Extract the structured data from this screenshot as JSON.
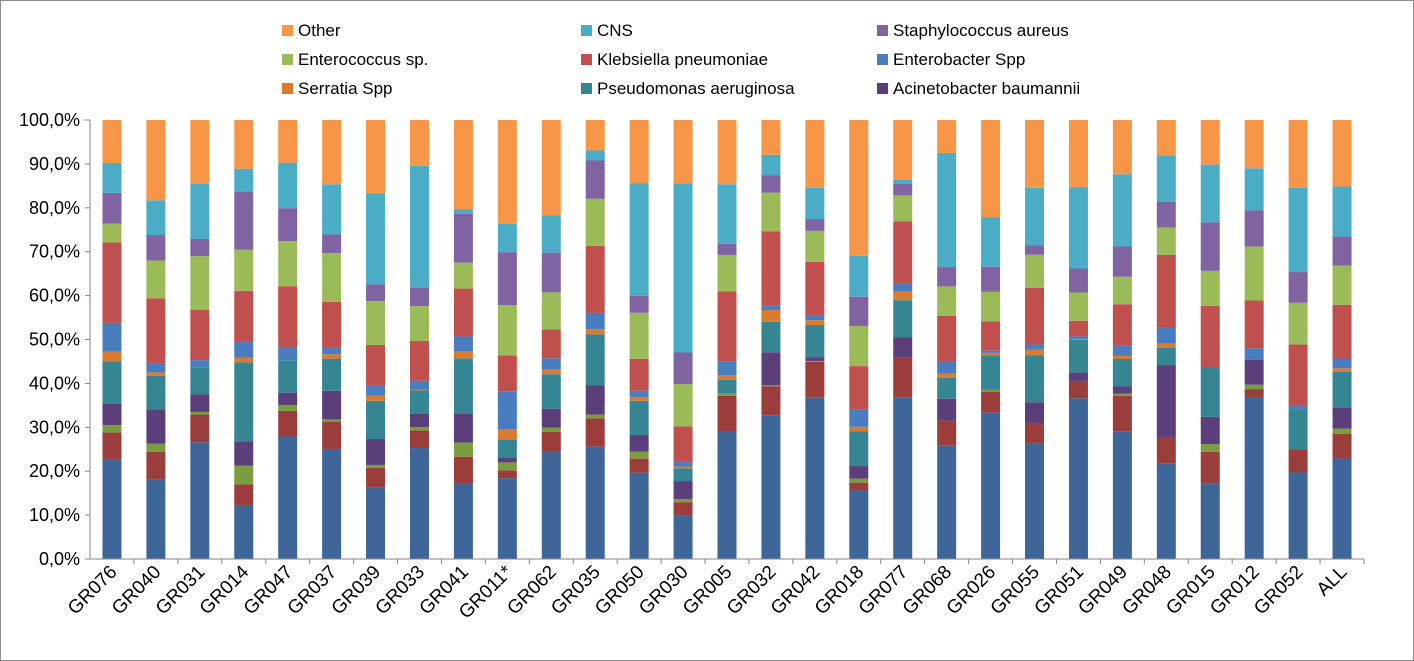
{
  "chart_data": {
    "type": "bar",
    "stacked": "percent",
    "title": "",
    "xlabel": "",
    "ylabel": "",
    "ylim": [
      0,
      100
    ],
    "yticks": [
      "0,0%",
      "10,0%",
      "20,0%",
      "30,0%",
      "40,0%",
      "50,0%",
      "60,0%",
      "70,0%",
      "80,0%",
      "90,0%",
      "100,0%"
    ],
    "grid": false,
    "legend_position": "top",
    "categories": [
      "GR076",
      "GR040",
      "GR031",
      "GR014",
      "GR047",
      "GR037",
      "GR039",
      "GR033",
      "GR041",
      "GR011*",
      "GR062",
      "GR035",
      "GR050",
      "GR030",
      "GR005",
      "GR032",
      "GR042",
      "GR018",
      "GR077",
      "GR068",
      "GR026",
      "GR055",
      "GR051",
      "GR049",
      "GR048",
      "GR015",
      "GR012",
      "GR052",
      "ALL"
    ],
    "legend_order": [
      "Other",
      "CNS",
      "Staphylococcus aureus",
      "Enterococcus sp.",
      "Klebsiella pneumoniae",
      "Enterobacter Spp",
      "Serratia Spp",
      "Pseudomonas aeruginosa",
      "Acinetobacter baumannii"
    ],
    "series": [
      {
        "name": "",
        "color": "#3f6699",
        "values": [
          22.8,
          18.2,
          26.6,
          12.2,
          27.8,
          25.0,
          16.2,
          25.4,
          17.3,
          18.4,
          24.3,
          25.5,
          19.7,
          9.9,
          27.6,
          32.6,
          36.8,
          15.7,
          36.9,
          25.8,
          33.3,
          26.2,
          36.9,
          29.2,
          21.8,
          17.3,
          36.9,
          19.7,
          22.5
        ]
      },
      {
        "name": "",
        "color": "#9b3d3b",
        "values": [
          6.0,
          6.2,
          6.3,
          4.8,
          5.8,
          6.2,
          4.5,
          4.0,
          6.0,
          1.8,
          4.5,
          6.4,
          3.2,
          3.0,
          7.7,
          6.6,
          8.2,
          1.8,
          9.0,
          5.7,
          4.7,
          4.7,
          4.0,
          8.1,
          6.0,
          7.2,
          1.8,
          5.3,
          5.5
        ]
      },
      {
        "name": "",
        "color": "#7b9c3f",
        "values": [
          1.7,
          1.9,
          0.6,
          4.3,
          1.3,
          0.5,
          0.7,
          0.8,
          3.2,
          1.8,
          0.9,
          0.9,
          1.6,
          0.7,
          0.6,
          0.2,
          0.2,
          0.9,
          0.0,
          0.0,
          0.5,
          0.0,
          0.0,
          0.5,
          0.0,
          1.8,
          1.0,
          0.0,
          1.2
        ]
      },
      {
        "name": "Acinetobacter baumannii",
        "color": "#5a3f7a",
        "values": [
          4.8,
          7.8,
          4.0,
          5.5,
          2.8,
          6.5,
          5.9,
          3.0,
          6.7,
          1.1,
          4.3,
          6.6,
          3.8,
          4.1,
          0.0,
          7.5,
          0.8,
          2.9,
          4.6,
          5.0,
          0.0,
          4.7,
          1.9,
          1.6,
          16.6,
          6.2,
          5.7,
          0.0,
          4.7
        ]
      },
      {
        "name": "Pseudomonas aeruginosa",
        "color": "#358592",
        "values": [
          9.7,
          7.6,
          6.1,
          18.0,
          7.4,
          7.3,
          8.7,
          5.4,
          12.5,
          4.1,
          7.8,
          11.6,
          7.8,
          2.9,
          2.9,
          6.9,
          7.4,
          8.0,
          8.5,
          4.8,
          7.8,
          10.7,
          7.5,
          6.3,
          3.9,
          11.3,
          0.0,
          9.0,
          8.0
        ]
      },
      {
        "name": "Serratia Spp",
        "color": "#d97b30",
        "values": [
          2.2,
          0.8,
          0.0,
          1.1,
          0.0,
          1.0,
          1.2,
          0.2,
          1.6,
          2.4,
          1.0,
          1.2,
          0.8,
          0.4,
          1.0,
          2.7,
          1.1,
          1.0,
          2.0,
          0.9,
          0.6,
          1.2,
          0.2,
          0.7,
          1.0,
          0.0,
          0.0,
          0.0,
          0.8
        ]
      },
      {
        "name": "Enterobacter Spp",
        "color": "#4a7dbf",
        "values": [
          6.6,
          2.0,
          1.7,
          3.5,
          2.9,
          1.4,
          2.2,
          2.0,
          3.4,
          8.6,
          2.6,
          3.7,
          1.5,
          1.0,
          3.0,
          1.1,
          1.0,
          4.0,
          1.9,
          2.8,
          0.5,
          1.2,
          0.6,
          2.3,
          3.6,
          0.0,
          2.6,
          0.8,
          2.2
        ]
      },
      {
        "name": "Klebsiella pneumoniae",
        "color": "#c0504d",
        "values": [
          18.3,
          14.9,
          11.5,
          11.7,
          13.9,
          10.5,
          9.3,
          9.1,
          10.9,
          8.2,
          6.5,
          15.2,
          7.3,
          8.1,
          15.1,
          16.7,
          12.3,
          9.9,
          14.1,
          10.4,
          6.7,
          12.9,
          3.6,
          9.5,
          16.7,
          14.1,
          10.9,
          14.0,
          12.0
        ]
      },
      {
        "name": "Enterococcus sp.",
        "color": "#9bbb59",
        "values": [
          4.3,
          8.6,
          12.2,
          9.4,
          10.2,
          11.1,
          10.0,
          8.0,
          5.9,
          11.4,
          8.4,
          10.7,
          10.5,
          9.6,
          7.9,
          8.8,
          7.1,
          9.2,
          5.9,
          6.7,
          6.7,
          7.5,
          6.5,
          6.3,
          6.3,
          8.0,
          12.3,
          9.5,
          8.8
        ]
      },
      {
        "name": "Staphylococcus aureus",
        "color": "#8064a2",
        "values": [
          7.0,
          5.8,
          3.9,
          13.2,
          7.5,
          4.2,
          3.8,
          4.3,
          11.1,
          12.1,
          9.0,
          8.7,
          3.9,
          7.2,
          2.4,
          4.0,
          2.7,
          6.7,
          2.6,
          4.4,
          5.7,
          2.1,
          5.5,
          6.9,
          5.9,
          11.1,
          8.2,
          7.0,
          6.5
        ]
      },
      {
        "name": "CNS",
        "color": "#4bacc6",
        "values": [
          6.8,
          7.9,
          12.6,
          5.2,
          10.3,
          11.4,
          20.7,
          27.8,
          1.1,
          6.5,
          8.4,
          2.3,
          25.7,
          38.4,
          12.9,
          4.6,
          7.1,
          9.4,
          1.0,
          26.0,
          11.3,
          13.1,
          18.7,
          16.5,
          10.6,
          13.2,
          9.6,
          19.2,
          11.2
        ]
      },
      {
        "name": "Other",
        "color": "#f79646",
        "values": [
          9.8,
          18.3,
          14.5,
          11.1,
          9.7,
          14.6,
          16.7,
          10.5,
          20.3,
          23.6,
          21.6,
          6.9,
          14.4,
          14.4,
          13.9,
          7.9,
          15.5,
          31.1,
          13.6,
          7.5,
          22.1,
          15.4,
          15.4,
          12.4,
          8.1,
          10.2,
          11.0,
          15.4,
          14.9
        ]
      }
    ]
  }
}
